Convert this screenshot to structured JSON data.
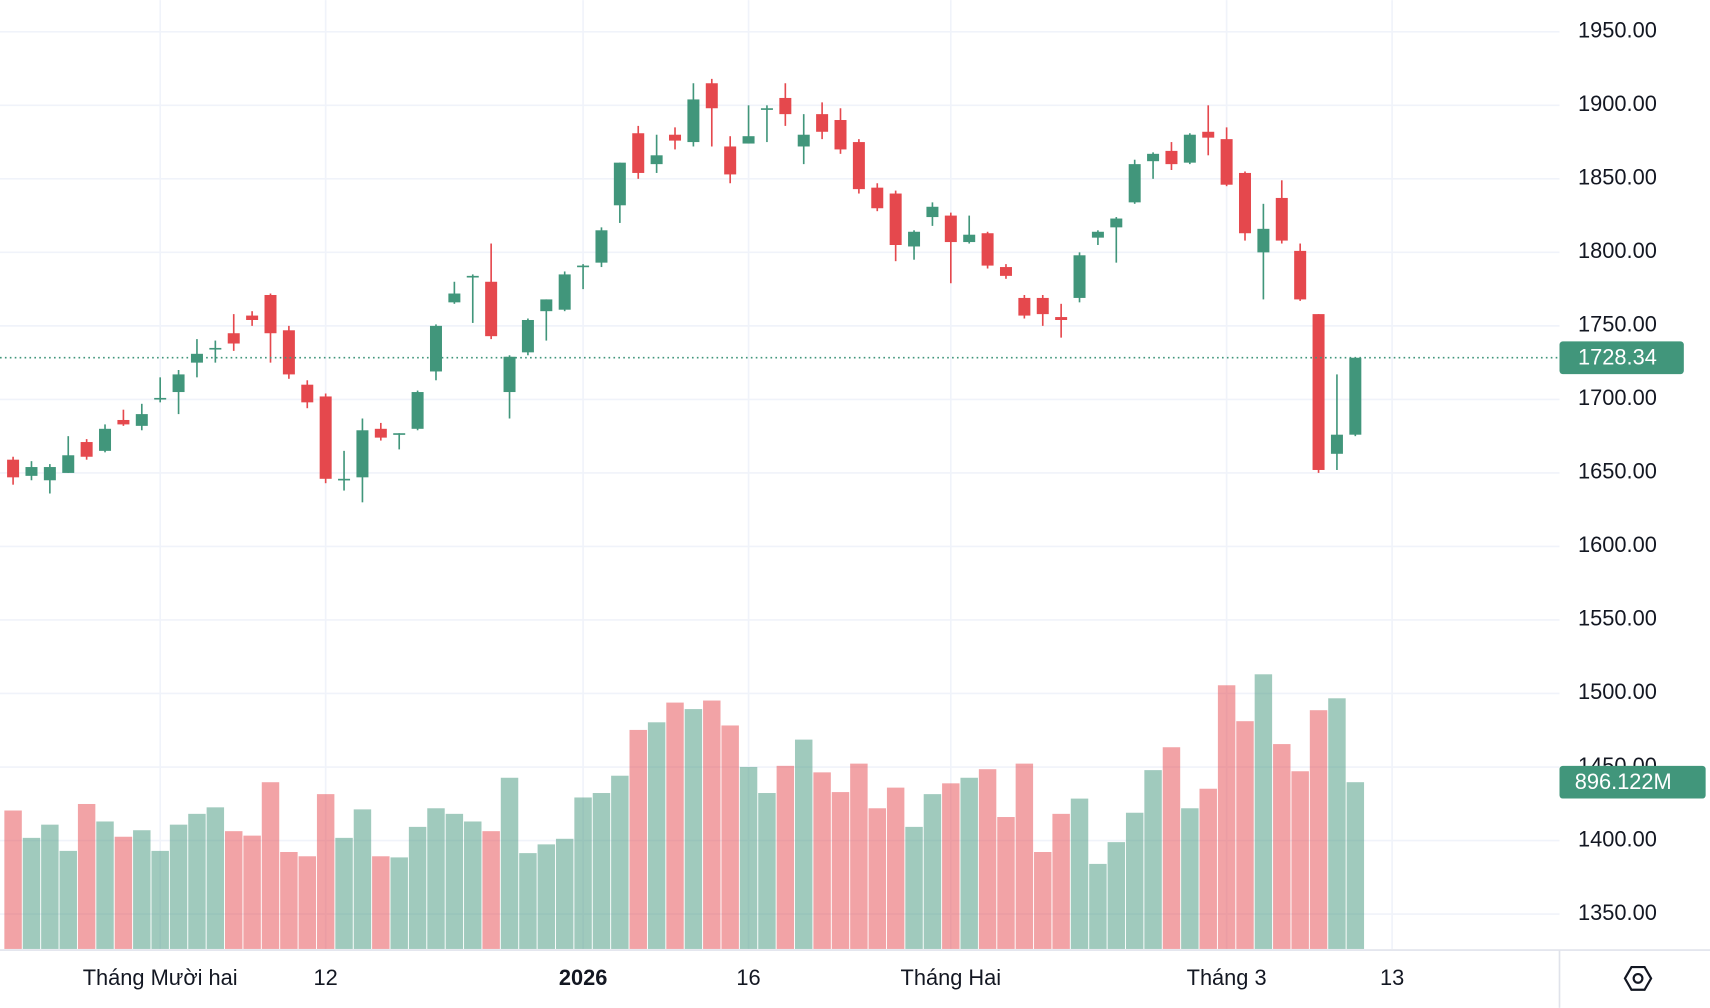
{
  "chart_data": {
    "type": "candlestick",
    "up_color": "#41967b",
    "down_color": "#e5484d",
    "volume_opacity": 0.5,
    "ylim": [
      1350,
      1950
    ],
    "yticks": [
      {
        "value": 1950,
        "label": "1950.00"
      },
      {
        "value": 1900,
        "label": "1900.00"
      },
      {
        "value": 1850,
        "label": "1850.00"
      },
      {
        "value": 1800,
        "label": "1800.00"
      },
      {
        "value": 1750,
        "label": "1750.00"
      },
      {
        "value": 1700,
        "label": "1700.00"
      },
      {
        "value": 1650,
        "label": "1650.00"
      },
      {
        "value": 1600,
        "label": "1600.00"
      },
      {
        "value": 1550,
        "label": "1550.00"
      },
      {
        "value": 1500,
        "label": "1500.00"
      },
      {
        "value": 1450,
        "label": "1450.00"
      },
      {
        "value": 1400,
        "label": "1400.00"
      },
      {
        "value": 1350,
        "label": "1350.00"
      }
    ],
    "grid": true,
    "x_labels": [
      {
        "value": 8,
        "label": "Tháng Mười hai"
      },
      {
        "value": 17,
        "label": "12"
      },
      {
        "value": 31,
        "label": "2026",
        "bold": true
      },
      {
        "value": 40,
        "label": "16"
      },
      {
        "value": 51,
        "label": "Tháng Hai"
      },
      {
        "value": 66,
        "label": "Tháng 3"
      },
      {
        "value": 75,
        "label": "13"
      }
    ],
    "open": [
      1659,
      1648,
      1645,
      1650,
      1671,
      1665,
      1686,
      1682,
      1700,
      1705,
      1725,
      1734,
      1745,
      1757,
      1771,
      1747,
      1710,
      1702,
      1646,
      1647,
      1680,
      1676,
      1680,
      1719,
      1766,
      1783,
      1780,
      1705,
      1732,
      1760,
      1761,
      1791,
      1793,
      1832,
      1881,
      1860,
      1880,
      1875,
      1915,
      1872,
      1874,
      1898,
      1905,
      1872,
      1894,
      1890,
      1875,
      1844,
      1840,
      1804,
      1824,
      1825,
      1807,
      1813,
      1790,
      1769,
      1769,
      1756,
      1769,
      1810,
      1817,
      1834,
      1862,
      1869,
      1861,
      1882,
      1877,
      1854,
      1800,
      1837,
      1801,
      1758,
      1663,
      1676
    ],
    "high": [
      1661,
      1658,
      1656,
      1675,
      1673,
      1683,
      1693,
      1697,
      1715,
      1720,
      1741,
      1740,
      1758,
      1760,
      1772,
      1750,
      1713,
      1704,
      1665,
      1687,
      1684,
      1677,
      1706,
      1751,
      1780,
      1785,
      1806,
      1730,
      1755,
      1768,
      1787,
      1792,
      1817,
      1861,
      1886,
      1880,
      1885,
      1915,
      1918,
      1879,
      1900,
      1900,
      1915,
      1894,
      1902,
      1898,
      1877,
      1847,
      1842,
      1815,
      1834,
      1827,
      1825,
      1814,
      1792,
      1771,
      1771,
      1765,
      1800,
      1815,
      1824,
      1863,
      1868,
      1875,
      1881,
      1900,
      1885,
      1855,
      1833,
      1849,
      1806,
      1758,
      1717,
      1728.34
    ],
    "low": [
      1642,
      1645,
      1636,
      1650,
      1659,
      1664,
      1682,
      1679,
      1698,
      1690,
      1715,
      1725,
      1733,
      1750,
      1725,
      1714,
      1694,
      1643,
      1638,
      1630,
      1672,
      1666,
      1679,
      1713,
      1765,
      1752,
      1741,
      1687,
      1730,
      1740,
      1760,
      1775,
      1790,
      1820,
      1850,
      1854,
      1870,
      1872,
      1872,
      1847,
      1874,
      1875,
      1886,
      1860,
      1877,
      1867,
      1840,
      1828,
      1794,
      1795,
      1818,
      1779,
      1806,
      1789,
      1782,
      1755,
      1750,
      1742,
      1766,
      1805,
      1793,
      1833,
      1850,
      1856,
      1860,
      1866,
      1845,
      1808,
      1768,
      1806,
      1767,
      1650,
      1652,
      1675
    ],
    "close": [
      1647,
      1654,
      1654,
      1662,
      1661,
      1680,
      1683,
      1690,
      1701,
      1717,
      1731,
      1735,
      1738,
      1754,
      1745,
      1717,
      1698,
      1646,
      1646,
      1679,
      1674,
      1677,
      1705,
      1750,
      1772,
      1784,
      1743,
      1729,
      1754,
      1768,
      1785,
      1791,
      1815,
      1861,
      1854,
      1866,
      1876,
      1904,
      1898,
      1853,
      1879,
      1898,
      1894,
      1880,
      1882,
      1870,
      1843,
      1830,
      1805,
      1814,
      1831,
      1807,
      1812,
      1791,
      1784,
      1757,
      1758,
      1754,
      1798,
      1814,
      1823,
      1860,
      1867,
      1860,
      1880,
      1878,
      1846,
      1813,
      1816,
      1808,
      1768,
      1652,
      1676,
      1728.34
    ],
    "volume_ylim": [
      0,
      1600
    ],
    "volume": [
      744,
      597,
      668,
      527,
      779,
      685,
      603,
      638,
      527,
      668,
      726,
      761,
      633,
      609,
      896,
      521,
      498,
      832,
      597,
      750,
      498,
      492,
      656,
      756,
      726,
      685,
      633,
      920,
      515,
      562,
      592,
      814,
      838,
      931,
      1177,
      1218,
      1324,
      1289,
      1335,
      1201,
      978,
      838,
      984,
      1125,
      949,
      843,
      996,
      756,
      867,
      656,
      832,
      890,
      920,
      966,
      709,
      996,
      521,
      726,
      808,
      457,
      574,
      732,
      961,
      1084,
      756,
      861,
      1417,
      1224,
      1476,
      1101,
      955,
      1283,
      1347,
      896.122
    ],
    "last_volume_label": "896.122M"
  }
}
